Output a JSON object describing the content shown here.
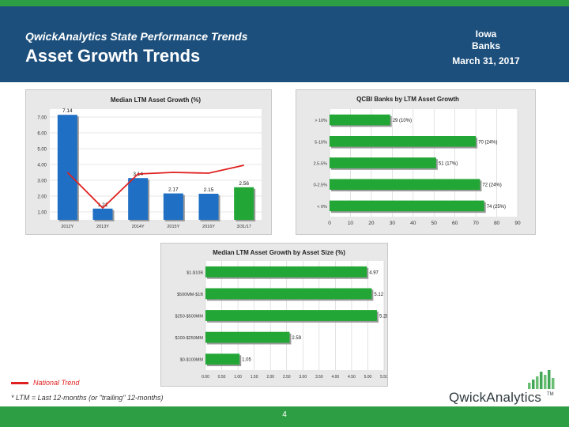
{
  "header": {
    "subtitle": "QwickAnalytics State Performance Trends",
    "title": "Asset Growth Trends",
    "state": "Iowa",
    "entity": "Banks",
    "date": "March 31, 2017"
  },
  "colors": {
    "header_bg": "#1c4f7c",
    "accent_green": "#2e9e45",
    "bar_blue": "#1f6fc4",
    "bar_green": "#22a636",
    "trend_red": "#e02020"
  },
  "chart_data": [
    {
      "type": "bar",
      "title": "Median LTM Asset Growth (%)",
      "categories": [
        "2012Y",
        "2013Y",
        "2014Y",
        "2015Y",
        "2016Y",
        "3/31/17"
      ],
      "values": [
        7.14,
        1.21,
        3.14,
        2.17,
        2.15,
        2.56
      ],
      "value_labels": [
        "7.14",
        "1.21",
        "3.14",
        "2.17",
        "2.15",
        "2.56"
      ],
      "highlight_last": true,
      "trend_name": "National Trend",
      "trend_values": [
        3.5,
        1.25,
        3.4,
        3.5,
        3.45,
        3.95
      ],
      "yticks": [
        "1.00",
        "2.00",
        "3.00",
        "4.00",
        "5.00",
        "6.00",
        "7.00"
      ],
      "ylim": [
        0.5,
        7.5
      ]
    },
    {
      "type": "bar",
      "orientation": "horizontal",
      "title": "QCBI Banks by LTM Asset Growth",
      "categories": [
        "> 10%",
        "5-10%",
        "2.5-5%",
        "0-2.5%",
        "< 0%"
      ],
      "values": [
        29,
        70,
        51,
        72,
        74
      ],
      "value_labels": [
        "29 (10%)",
        "70 (24%)",
        "51 (17%)",
        "72 (24%)",
        "74 (25%)"
      ],
      "xticks": [
        0,
        10,
        20,
        30,
        40,
        50,
        60,
        70,
        80,
        90
      ],
      "xlim": [
        0,
        90
      ]
    },
    {
      "type": "bar",
      "orientation": "horizontal",
      "title": "Median LTM Asset Growth by Asset Size (%)",
      "categories": [
        "$1-$10B",
        "$500MM-$1B",
        "$250-$500MM",
        "$100-$250MM",
        "$0-$100MM"
      ],
      "values": [
        4.97,
        5.12,
        5.28,
        2.59,
        1.05
      ],
      "value_labels": [
        "4.97",
        "5.12",
        "5.28",
        "2.59",
        "1.05"
      ],
      "xticks": [
        "0.00",
        "0.50",
        "1.00",
        "1.50",
        "2.00",
        "2.50",
        "3.00",
        "3.50",
        "4.00",
        "4.50",
        "5.00",
        "5.50"
      ],
      "xlim": [
        0,
        5.5
      ]
    }
  ],
  "legend": {
    "label": "National Trend"
  },
  "footnote": "* LTM = Last 12-months (or \"trailing\" 12-months)",
  "logo": {
    "text": "QwickAnalytics",
    "tm": "TM"
  },
  "page_number": "4"
}
